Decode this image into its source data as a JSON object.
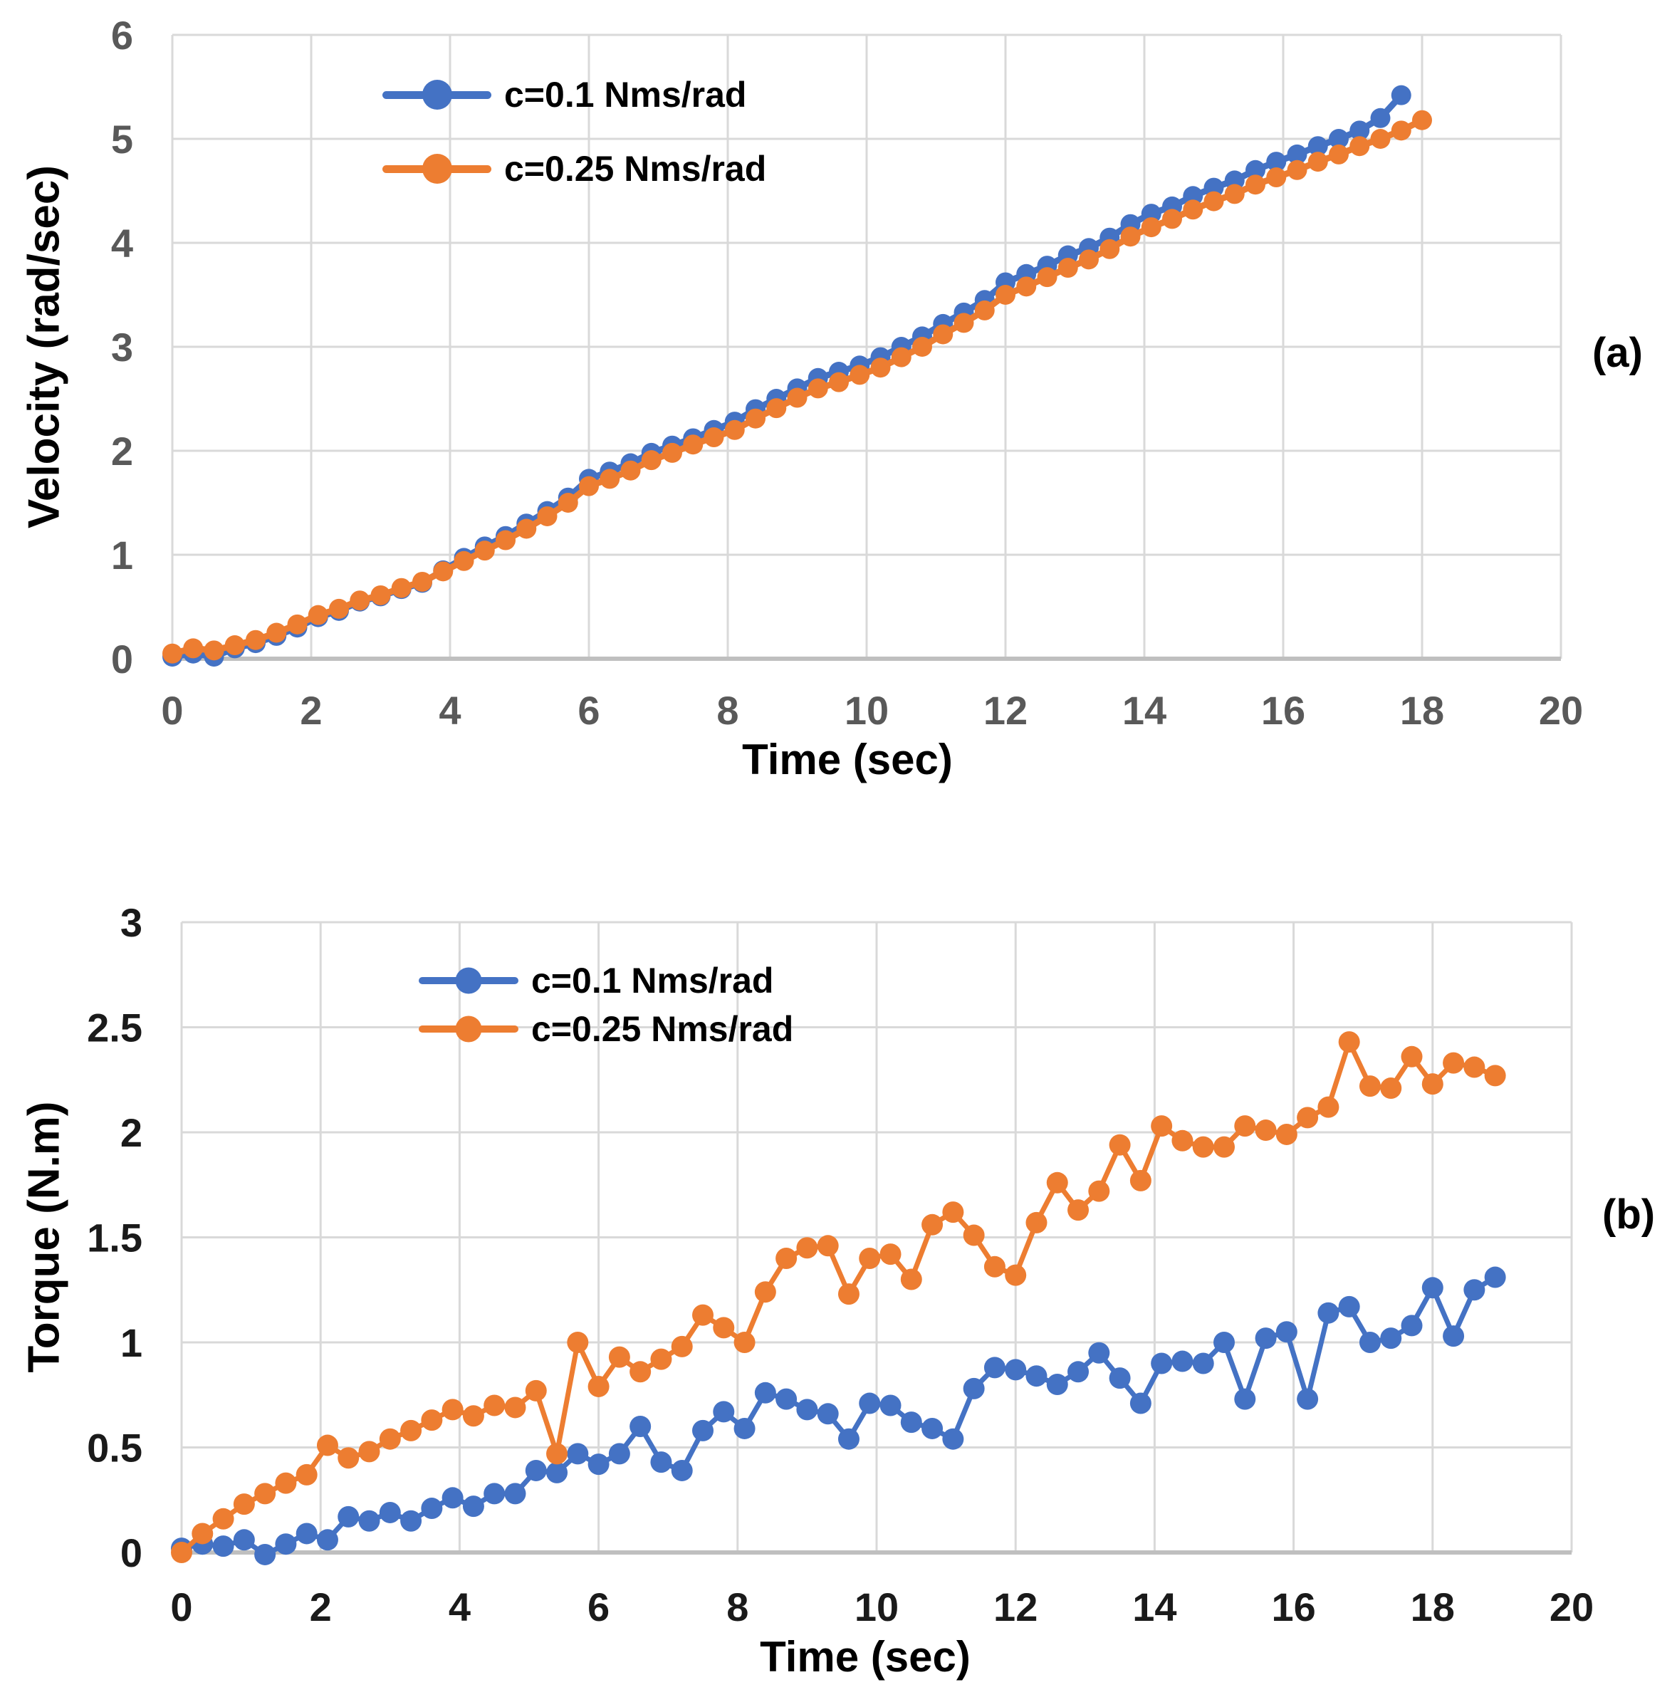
{
  "page": {
    "background": "#ffffff"
  },
  "colors": {
    "series_blue": "#4472C4",
    "series_orange": "#ED7D31",
    "grid": "#D9D9D9",
    "axis_line": "#BFBFBF"
  },
  "chart_data": [
    {
      "type": "line",
      "panel_label": "(a)",
      "title": "",
      "xlabel": "Time (sec)",
      "ylabel": "Velocity (rad/sec)",
      "xlim": [
        0,
        20
      ],
      "ylim": [
        0,
        6
      ],
      "grid": true,
      "grid_color": "#D9D9D9",
      "axis_color": "#BFBFBF",
      "tick_color": "#595959",
      "legend_position": "top-left-inside",
      "x_tick_values": [
        0,
        2,
        4,
        6,
        8,
        10,
        12,
        14,
        16,
        18,
        20
      ],
      "x_tick_labels": [
        "0",
        "2",
        "4",
        "6",
        "8",
        "10",
        "12",
        "14",
        "16",
        "18",
        "20"
      ],
      "y_tick_values": [
        0,
        1,
        2,
        3,
        4,
        5,
        6
      ],
      "y_tick_labels": [
        "0",
        "1",
        "2",
        "3",
        "4",
        "5",
        "6"
      ],
      "series": [
        {
          "name": "c=0.1 Nms/rad",
          "color": "#4472C4",
          "x": [
            0,
            0.3,
            0.6,
            0.9,
            1.2,
            1.5,
            1.8,
            2.1,
            2.4,
            2.7,
            3,
            3.3,
            3.6,
            3.9,
            4.2,
            4.5,
            4.8,
            5.1,
            5.4,
            5.7,
            6,
            6.3,
            6.6,
            6.9,
            7.2,
            7.5,
            7.8,
            8.1,
            8.4,
            8.7,
            9,
            9.3,
            9.6,
            9.9,
            10.2,
            10.5,
            10.8,
            11.1,
            11.4,
            11.7,
            12,
            12.3,
            12.6,
            12.9,
            13.2,
            13.5,
            13.8,
            14.1,
            14.4,
            14.7,
            15,
            15.3,
            15.6,
            15.9,
            16.2,
            16.5,
            16.8,
            17.1,
            17.4,
            17.7
          ],
          "y": [
            0.02,
            0.05,
            0.02,
            0.1,
            0.15,
            0.22,
            0.3,
            0.4,
            0.46,
            0.55,
            0.6,
            0.67,
            0.73,
            0.85,
            0.97,
            1.08,
            1.18,
            1.3,
            1.42,
            1.55,
            1.73,
            1.8,
            1.88,
            1.98,
            2.05,
            2.12,
            2.2,
            2.28,
            2.4,
            2.5,
            2.6,
            2.7,
            2.76,
            2.82,
            2.9,
            3.0,
            3.1,
            3.22,
            3.33,
            3.45,
            3.62,
            3.7,
            3.78,
            3.88,
            3.95,
            4.05,
            4.18,
            4.28,
            4.35,
            4.45,
            4.53,
            4.6,
            4.7,
            4.78,
            4.85,
            4.93,
            5.0,
            5.08,
            5.2,
            5.42
          ]
        },
        {
          "name": "c=0.25 Nms/rad",
          "color": "#ED7D31",
          "x": [
            0,
            0.3,
            0.6,
            0.9,
            1.2,
            1.5,
            1.8,
            2.1,
            2.4,
            2.7,
            3,
            3.3,
            3.6,
            3.9,
            4.2,
            4.5,
            4.8,
            5.1,
            5.4,
            5.7,
            6,
            6.3,
            6.6,
            6.9,
            7.2,
            7.5,
            7.8,
            8.1,
            8.4,
            8.7,
            9,
            9.3,
            9.6,
            9.9,
            10.2,
            10.5,
            10.8,
            11.1,
            11.4,
            11.7,
            12,
            12.3,
            12.6,
            12.9,
            13.2,
            13.5,
            13.8,
            14.1,
            14.4,
            14.7,
            15,
            15.3,
            15.6,
            15.9,
            16.2,
            16.5,
            16.8,
            17.1,
            17.4,
            17.7,
            18
          ],
          "y": [
            0.05,
            0.1,
            0.08,
            0.13,
            0.18,
            0.25,
            0.33,
            0.42,
            0.48,
            0.56,
            0.61,
            0.68,
            0.74,
            0.84,
            0.94,
            1.04,
            1.14,
            1.25,
            1.37,
            1.5,
            1.66,
            1.73,
            1.81,
            1.91,
            1.98,
            2.06,
            2.13,
            2.2,
            2.31,
            2.41,
            2.51,
            2.6,
            2.66,
            2.73,
            2.8,
            2.9,
            3.0,
            3.12,
            3.23,
            3.35,
            3.5,
            3.58,
            3.67,
            3.76,
            3.84,
            3.94,
            4.06,
            4.15,
            4.23,
            4.32,
            4.4,
            4.47,
            4.56,
            4.63,
            4.7,
            4.78,
            4.85,
            4.93,
            5.0,
            5.08,
            5.18
          ]
        }
      ]
    },
    {
      "type": "line",
      "panel_label": "(b)",
      "title": "",
      "xlabel": "Time (sec)",
      "ylabel": "Torque (N.m)",
      "xlim": [
        0,
        20
      ],
      "ylim": [
        0,
        3
      ],
      "grid": true,
      "grid_color": "#D9D9D9",
      "axis_color": "#BFBFBF",
      "tick_color": "#1a1a1a",
      "legend_position": "top-left-inside",
      "x_tick_values": [
        0,
        2,
        4,
        6,
        8,
        10,
        12,
        14,
        16,
        18,
        20
      ],
      "x_tick_labels": [
        "0",
        "2",
        "4",
        "6",
        "8",
        "10",
        "12",
        "14",
        "16",
        "18",
        "20"
      ],
      "y_tick_values": [
        0,
        0.5,
        1,
        1.5,
        2,
        2.5,
        3
      ],
      "y_tick_labels": [
        "0",
        "0.5",
        "1",
        "1.5",
        "2",
        "2.5",
        "3"
      ],
      "series": [
        {
          "name": "c=0.1 Nms/rad",
          "color": "#4472C4",
          "x": [
            0,
            0.3,
            0.6,
            0.9,
            1.2,
            1.5,
            1.8,
            2.1,
            2.4,
            2.7,
            3,
            3.3,
            3.6,
            3.9,
            4.2,
            4.5,
            4.8,
            5.1,
            5.4,
            5.7,
            6,
            6.3,
            6.6,
            6.9,
            7.2,
            7.5,
            7.8,
            8.1,
            8.4,
            8.7,
            9,
            9.3,
            9.6,
            9.9,
            10.2,
            10.5,
            10.8,
            11.1,
            11.4,
            11.7,
            12,
            12.3,
            12.6,
            12.9,
            13.2,
            13.5,
            13.8,
            14.1,
            14.4,
            14.7,
            15,
            15.3,
            15.6,
            15.9,
            16.2,
            16.5,
            16.8,
            17.1,
            17.4,
            17.7,
            18,
            18.3,
            18.6,
            18.9
          ],
          "y": [
            0.02,
            0.04,
            0.03,
            0.06,
            -0.01,
            0.04,
            0.09,
            0.06,
            0.17,
            0.15,
            0.19,
            0.15,
            0.21,
            0.26,
            0.22,
            0.28,
            0.28,
            0.39,
            0.38,
            0.47,
            0.42,
            0.47,
            0.6,
            0.43,
            0.39,
            0.58,
            0.67,
            0.59,
            0.76,
            0.73,
            0.68,
            0.66,
            0.54,
            0.71,
            0.7,
            0.62,
            0.59,
            0.54,
            0.78,
            0.88,
            0.87,
            0.84,
            0.8,
            0.86,
            0.95,
            0.83,
            0.71,
            0.9,
            0.91,
            0.9,
            1.0,
            0.73,
            1.02,
            1.05,
            0.73,
            1.14,
            1.17,
            1.0,
            1.02,
            1.08,
            1.26,
            1.03,
            1.25,
            1.31
          ]
        },
        {
          "name": "c=0.25 Nms/rad",
          "color": "#ED7D31",
          "x": [
            0,
            0.3,
            0.6,
            0.9,
            1.2,
            1.5,
            1.8,
            2.1,
            2.4,
            2.7,
            3,
            3.3,
            3.6,
            3.9,
            4.2,
            4.5,
            4.8,
            5.1,
            5.4,
            5.7,
            6,
            6.3,
            6.6,
            6.9,
            7.2,
            7.5,
            7.8,
            8.1,
            8.4,
            8.7,
            9,
            9.3,
            9.6,
            9.9,
            10.2,
            10.5,
            10.8,
            11.1,
            11.4,
            11.7,
            12,
            12.3,
            12.6,
            12.9,
            13.2,
            13.5,
            13.8,
            14.1,
            14.4,
            14.7,
            15,
            15.3,
            15.6,
            15.9,
            16.2,
            16.5,
            16.8,
            17.1,
            17.4,
            17.7,
            18,
            18.3,
            18.6,
            18.9
          ],
          "y": [
            0.0,
            0.09,
            0.16,
            0.23,
            0.28,
            0.33,
            0.37,
            0.51,
            0.45,
            0.48,
            0.54,
            0.58,
            0.63,
            0.68,
            0.65,
            0.7,
            0.69,
            0.77,
            0.47,
            1.0,
            0.79,
            0.93,
            0.86,
            0.92,
            0.98,
            1.13,
            1.07,
            1.0,
            1.24,
            1.4,
            1.45,
            1.46,
            1.23,
            1.4,
            1.42,
            1.3,
            1.56,
            1.62,
            1.51,
            1.36,
            1.32,
            1.57,
            1.76,
            1.63,
            1.72,
            1.94,
            1.77,
            2.03,
            1.96,
            1.93,
            1.93,
            2.03,
            2.01,
            1.99,
            2.07,
            2.12,
            2.43,
            2.22,
            2.21,
            2.36,
            2.23,
            2.33,
            2.31,
            2.27
          ]
        }
      ]
    }
  ]
}
